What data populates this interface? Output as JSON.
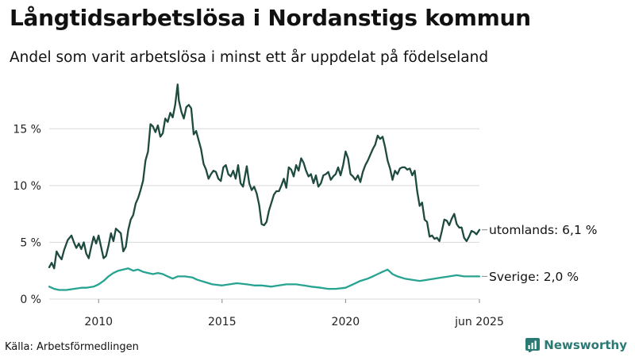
{
  "title": "Långtidsarbetslösa i Nordanstigs kommun",
  "subtitle": "Andel som varit arbetslösa i minst ett år uppdelat på födelseland",
  "source": "Källa: Arbetsförmedlingen",
  "brand": {
    "name": "Newsworthy",
    "color": "#2a7a73"
  },
  "chart_data": {
    "type": "line",
    "title": "Långtidsarbetslösa i Nordanstigs kommun",
    "xlabel": "",
    "ylabel": "",
    "xlim": [
      2008.0,
      2025.42
    ],
    "ylim": [
      0,
      19
    ],
    "grid": true,
    "x_ticks": [
      {
        "value": 2010,
        "label": "2010"
      },
      {
        "value": 2015,
        "label": "2015"
      },
      {
        "value": 2020,
        "label": "2020"
      },
      {
        "value": 2025.42,
        "label": "jun 2025"
      }
    ],
    "y_ticks": [
      {
        "value": 0,
        "label": "0 %"
      },
      {
        "value": 5,
        "label": "5 %"
      },
      {
        "value": 10,
        "label": "10 %"
      },
      {
        "value": 15,
        "label": "15 %"
      }
    ],
    "series": [
      {
        "name": "utomlands",
        "end_label": "utomlands: 6,1 %",
        "color": "#1e4a3f",
        "points": [
          [
            2008.0,
            2.8
          ],
          [
            2008.1,
            3.2
          ],
          [
            2008.2,
            2.7
          ],
          [
            2008.3,
            4.2
          ],
          [
            2008.4,
            3.8
          ],
          [
            2008.5,
            3.5
          ],
          [
            2008.6,
            4.3
          ],
          [
            2008.75,
            5.2
          ],
          [
            2008.9,
            5.6
          ],
          [
            2009.0,
            5.0
          ],
          [
            2009.1,
            4.5
          ],
          [
            2009.2,
            4.9
          ],
          [
            2009.3,
            4.4
          ],
          [
            2009.4,
            5.0
          ],
          [
            2009.5,
            4.0
          ],
          [
            2009.6,
            3.6
          ],
          [
            2009.7,
            4.6
          ],
          [
            2009.8,
            5.5
          ],
          [
            2009.9,
            4.9
          ],
          [
            2010.0,
            5.6
          ],
          [
            2010.1,
            4.6
          ],
          [
            2010.2,
            3.6
          ],
          [
            2010.3,
            3.8
          ],
          [
            2010.4,
            4.7
          ],
          [
            2010.5,
            5.8
          ],
          [
            2010.6,
            5.1
          ],
          [
            2010.7,
            6.2
          ],
          [
            2010.8,
            6.0
          ],
          [
            2010.9,
            5.8
          ],
          [
            2011.0,
            4.2
          ],
          [
            2011.1,
            4.6
          ],
          [
            2011.2,
            6.1
          ],
          [
            2011.3,
            7.0
          ],
          [
            2011.4,
            7.4
          ],
          [
            2011.5,
            8.4
          ],
          [
            2011.6,
            8.9
          ],
          [
            2011.7,
            9.6
          ],
          [
            2011.8,
            10.4
          ],
          [
            2011.9,
            12.2
          ],
          [
            2012.0,
            13.0
          ],
          [
            2012.1,
            15.4
          ],
          [
            2012.2,
            15.2
          ],
          [
            2012.3,
            14.7
          ],
          [
            2012.4,
            15.3
          ],
          [
            2012.5,
            14.3
          ],
          [
            2012.6,
            14.6
          ],
          [
            2012.7,
            15.9
          ],
          [
            2012.8,
            15.6
          ],
          [
            2012.9,
            16.4
          ],
          [
            2013.0,
            16.0
          ],
          [
            2013.1,
            17.1
          ],
          [
            2013.2,
            18.9
          ],
          [
            2013.25,
            17.5
          ],
          [
            2013.35,
            16.5
          ],
          [
            2013.45,
            15.9
          ],
          [
            2013.55,
            16.9
          ],
          [
            2013.65,
            17.1
          ],
          [
            2013.75,
            16.8
          ],
          [
            2013.85,
            14.5
          ],
          [
            2013.95,
            14.8
          ],
          [
            2014.05,
            14.0
          ],
          [
            2014.15,
            13.2
          ],
          [
            2014.25,
            11.9
          ],
          [
            2014.35,
            11.4
          ],
          [
            2014.45,
            10.6
          ],
          [
            2014.55,
            11.0
          ],
          [
            2014.65,
            11.3
          ],
          [
            2014.75,
            11.2
          ],
          [
            2014.85,
            10.6
          ],
          [
            2014.95,
            10.4
          ],
          [
            2015.05,
            11.6
          ],
          [
            2015.15,
            11.8
          ],
          [
            2015.25,
            11.0
          ],
          [
            2015.35,
            10.8
          ],
          [
            2015.45,
            11.3
          ],
          [
            2015.55,
            10.6
          ],
          [
            2015.65,
            11.8
          ],
          [
            2015.75,
            10.2
          ],
          [
            2015.85,
            9.9
          ],
          [
            2016.0,
            11.7
          ],
          [
            2016.1,
            10.2
          ],
          [
            2016.2,
            9.6
          ],
          [
            2016.3,
            9.9
          ],
          [
            2016.4,
            9.3
          ],
          [
            2016.5,
            8.3
          ],
          [
            2016.6,
            6.6
          ],
          [
            2016.7,
            6.5
          ],
          [
            2016.8,
            6.8
          ],
          [
            2016.9,
            7.8
          ],
          [
            2017.0,
            8.5
          ],
          [
            2017.1,
            9.2
          ],
          [
            2017.2,
            9.5
          ],
          [
            2017.3,
            9.5
          ],
          [
            2017.4,
            10.0
          ],
          [
            2017.5,
            10.6
          ],
          [
            2017.6,
            9.8
          ],
          [
            2017.7,
            11.6
          ],
          [
            2017.8,
            11.4
          ],
          [
            2017.9,
            10.8
          ],
          [
            2018.0,
            11.8
          ],
          [
            2018.1,
            11.3
          ],
          [
            2018.2,
            12.4
          ],
          [
            2018.3,
            12.0
          ],
          [
            2018.4,
            11.3
          ],
          [
            2018.5,
            10.8
          ],
          [
            2018.6,
            11.0
          ],
          [
            2018.7,
            10.2
          ],
          [
            2018.8,
            10.9
          ],
          [
            2018.9,
            9.9
          ],
          [
            2019.0,
            10.2
          ],
          [
            2019.1,
            10.9
          ],
          [
            2019.2,
            11.0
          ],
          [
            2019.3,
            11.2
          ],
          [
            2019.4,
            10.5
          ],
          [
            2019.5,
            10.8
          ],
          [
            2019.6,
            11.0
          ],
          [
            2019.7,
            11.6
          ],
          [
            2019.8,
            10.9
          ],
          [
            2019.9,
            11.8
          ],
          [
            2020.0,
            13.0
          ],
          [
            2020.1,
            12.4
          ],
          [
            2020.2,
            11.0
          ],
          [
            2020.3,
            10.8
          ],
          [
            2020.4,
            10.5
          ],
          [
            2020.5,
            10.9
          ],
          [
            2020.6,
            10.3
          ],
          [
            2020.7,
            11.2
          ],
          [
            2020.8,
            11.8
          ],
          [
            2020.9,
            12.2
          ],
          [
            2021.0,
            12.7
          ],
          [
            2021.1,
            13.2
          ],
          [
            2021.2,
            13.6
          ],
          [
            2021.3,
            14.4
          ],
          [
            2021.4,
            14.1
          ],
          [
            2021.5,
            14.3
          ],
          [
            2021.6,
            13.4
          ],
          [
            2021.7,
            12.2
          ],
          [
            2021.8,
            11.5
          ],
          [
            2021.9,
            10.5
          ],
          [
            2022.0,
            11.3
          ],
          [
            2022.1,
            11.0
          ],
          [
            2022.2,
            11.5
          ],
          [
            2022.3,
            11.6
          ],
          [
            2022.4,
            11.6
          ],
          [
            2022.5,
            11.4
          ],
          [
            2022.6,
            11.5
          ],
          [
            2022.7,
            10.9
          ],
          [
            2022.8,
            11.3
          ],
          [
            2022.9,
            9.5
          ],
          [
            2023.0,
            8.2
          ],
          [
            2023.1,
            8.5
          ],
          [
            2023.2,
            7.0
          ],
          [
            2023.3,
            6.8
          ],
          [
            2023.4,
            5.5
          ],
          [
            2023.5,
            5.6
          ],
          [
            2023.6,
            5.3
          ],
          [
            2023.7,
            5.4
          ],
          [
            2023.8,
            5.1
          ],
          [
            2023.9,
            6.0
          ],
          [
            2024.0,
            7.0
          ],
          [
            2024.1,
            6.9
          ],
          [
            2024.2,
            6.5
          ],
          [
            2024.3,
            7.1
          ],
          [
            2024.4,
            7.5
          ],
          [
            2024.5,
            6.6
          ],
          [
            2024.6,
            6.3
          ],
          [
            2024.7,
            6.3
          ],
          [
            2024.8,
            5.4
          ],
          [
            2024.9,
            5.1
          ],
          [
            2025.0,
            5.5
          ],
          [
            2025.1,
            6.0
          ],
          [
            2025.2,
            5.9
          ],
          [
            2025.3,
            5.7
          ],
          [
            2025.42,
            6.1
          ]
        ]
      },
      {
        "name": "Sverige",
        "end_label": "Sverige: 2,0 %",
        "color": "#26a391",
        "points": [
          [
            2008.0,
            1.1
          ],
          [
            2008.2,
            0.9
          ],
          [
            2008.4,
            0.8
          ],
          [
            2008.7,
            0.8
          ],
          [
            2009.0,
            0.9
          ],
          [
            2009.3,
            1.0
          ],
          [
            2009.5,
            1.0
          ],
          [
            2009.8,
            1.1
          ],
          [
            2010.0,
            1.3
          ],
          [
            2010.2,
            1.6
          ],
          [
            2010.4,
            2.0
          ],
          [
            2010.6,
            2.3
          ],
          [
            2010.8,
            2.5
          ],
          [
            2011.0,
            2.6
          ],
          [
            2011.2,
            2.7
          ],
          [
            2011.4,
            2.5
          ],
          [
            2011.6,
            2.6
          ],
          [
            2011.8,
            2.4
          ],
          [
            2012.0,
            2.3
          ],
          [
            2012.2,
            2.2
          ],
          [
            2012.4,
            2.3
          ],
          [
            2012.6,
            2.2
          ],
          [
            2012.8,
            2.0
          ],
          [
            2013.0,
            1.8
          ],
          [
            2013.2,
            2.0
          ],
          [
            2013.5,
            2.0
          ],
          [
            2013.8,
            1.9
          ],
          [
            2014.0,
            1.7
          ],
          [
            2014.3,
            1.5
          ],
          [
            2014.6,
            1.3
          ],
          [
            2015.0,
            1.2
          ],
          [
            2015.3,
            1.3
          ],
          [
            2015.6,
            1.4
          ],
          [
            2016.0,
            1.3
          ],
          [
            2016.3,
            1.2
          ],
          [
            2016.6,
            1.2
          ],
          [
            2017.0,
            1.1
          ],
          [
            2017.3,
            1.2
          ],
          [
            2017.6,
            1.3
          ],
          [
            2018.0,
            1.3
          ],
          [
            2018.3,
            1.2
          ],
          [
            2018.6,
            1.1
          ],
          [
            2019.0,
            1.0
          ],
          [
            2019.3,
            0.9
          ],
          [
            2019.6,
            0.9
          ],
          [
            2020.0,
            1.0
          ],
          [
            2020.3,
            1.3
          ],
          [
            2020.6,
            1.6
          ],
          [
            2020.9,
            1.8
          ],
          [
            2021.1,
            2.0
          ],
          [
            2021.3,
            2.2
          ],
          [
            2021.5,
            2.4
          ],
          [
            2021.7,
            2.6
          ],
          [
            2021.9,
            2.2
          ],
          [
            2022.1,
            2.0
          ],
          [
            2022.4,
            1.8
          ],
          [
            2022.7,
            1.7
          ],
          [
            2023.0,
            1.6
          ],
          [
            2023.3,
            1.7
          ],
          [
            2023.6,
            1.8
          ],
          [
            2023.9,
            1.9
          ],
          [
            2024.2,
            2.0
          ],
          [
            2024.5,
            2.1
          ],
          [
            2024.8,
            2.0
          ],
          [
            2025.1,
            2.0
          ],
          [
            2025.42,
            2.0
          ]
        ]
      }
    ]
  }
}
